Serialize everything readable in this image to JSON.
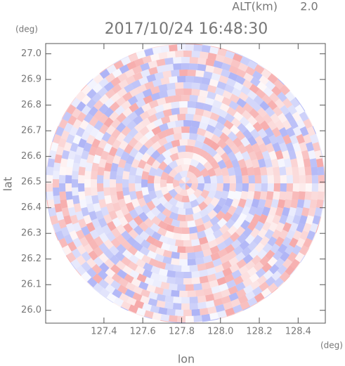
{
  "chart_data": {
    "type": "radar-ppi",
    "title": "2017/10/24 16:48:30",
    "altitude_label": "ALT(km)",
    "altitude": "2.0",
    "x_unit": "(deg)",
    "y_unit": "(deg)",
    "xlabel": "lon",
    "ylabel": "lat",
    "xlim": [
      127.1,
      128.54
    ],
    "ylim": [
      25.95,
      27.04
    ],
    "xticks": [
      127.4,
      127.6,
      127.8,
      {
        "value": 128.0,
        "label": "128.0"
      },
      128.2,
      128.4
    ],
    "yticks": [
      {
        "value": 26.0,
        "label": "26.0"
      },
      26.1,
      26.2,
      26.3,
      26.4,
      26.5,
      26.6,
      26.7,
      26.8,
      26.9,
      {
        "value": 27.0,
        "label": "27.0"
      }
    ]
  }
}
